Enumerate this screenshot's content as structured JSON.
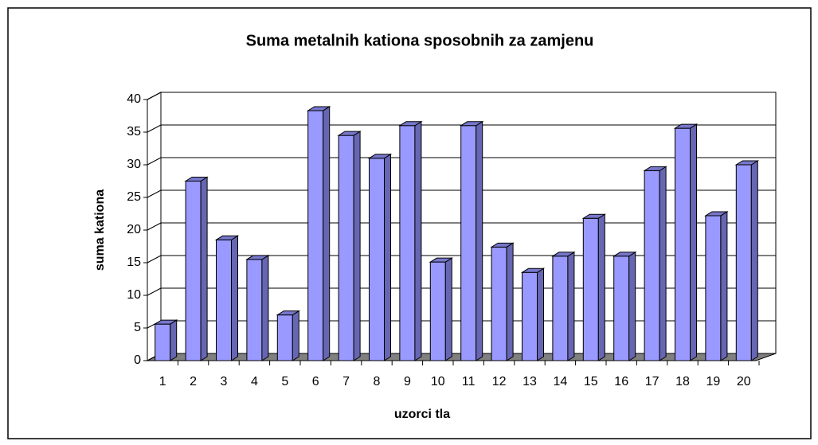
{
  "chart_data": {
    "type": "bar3d",
    "title": "Suma metalnih kationa sposobnih za zamjenu",
    "x_label": "uzorci tla",
    "y_label": "suma kationa",
    "categories": [
      "1",
      "2",
      "3",
      "4",
      "5",
      "6",
      "7",
      "8",
      "9",
      "10",
      "11",
      "12",
      "13",
      "14",
      "15",
      "16",
      "17",
      "18",
      "19",
      "20"
    ],
    "values": [
      5.6,
      27.5,
      18.5,
      15.5,
      7,
      38.3,
      34.5,
      31,
      36,
      15.1,
      36,
      17.4,
      13.5,
      16,
      21.8,
      16,
      29.1,
      35.6,
      22.2,
      30
    ],
    "color": "#9999ff",
    "ylim": [
      0,
      40
    ],
    "yticks": [
      0,
      5,
      10,
      15,
      20,
      25,
      30,
      35,
      40
    ],
    "grid": true
  }
}
